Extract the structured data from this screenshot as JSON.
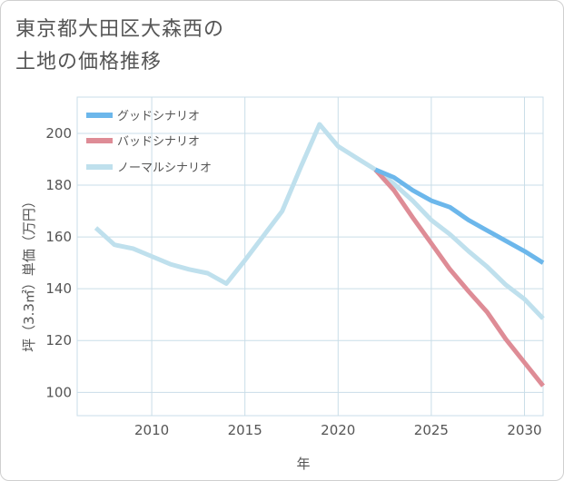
{
  "title_line1": "東京都大田区大森西の",
  "title_line2": "土地の価格推移",
  "chart_data": {
    "type": "line",
    "title": "東京都大田区大森西の土地の価格推移",
    "xlabel": "年",
    "ylabel": "坪（3.3㎡）単価（万円）",
    "xlim": [
      2006,
      2031
    ],
    "ylim": [
      91,
      214
    ],
    "xticks": [
      2010,
      2015,
      2020,
      2025,
      2030
    ],
    "yticks": [
      100,
      120,
      140,
      160,
      180,
      200
    ],
    "grid": true,
    "legend_position": "top-left",
    "series": [
      {
        "name": "グッドシナリオ",
        "color": "#6cb7eb",
        "x": [
          2022,
          2023,
          2024,
          2025,
          2026,
          2027,
          2028,
          2029,
          2030,
          2031
        ],
        "y": [
          186,
          183,
          178,
          174,
          171.5,
          166.5,
          162.5,
          158.5,
          154.5,
          150
        ]
      },
      {
        "name": "バッドシナリオ",
        "color": "#de8c96",
        "x": [
          2022,
          2023,
          2024,
          2025,
          2026,
          2027,
          2028,
          2029,
          2030,
          2031
        ],
        "y": [
          186,
          178,
          167.5,
          157.5,
          147.5,
          139,
          131,
          120.5,
          111.5,
          102.5
        ]
      },
      {
        "name": "ノーマルシナリオ",
        "color": "#bfe0ed",
        "x": [
          2007,
          2008,
          2009,
          2010,
          2011,
          2012,
          2013,
          2014,
          2015,
          2016,
          2017,
          2018,
          2019,
          2020,
          2021,
          2022,
          2023,
          2024,
          2025,
          2026,
          2027,
          2028,
          2029,
          2030,
          2031
        ],
        "y": [
          163.5,
          157,
          155.5,
          152.5,
          149.5,
          147.5,
          146,
          142,
          151,
          160.5,
          170,
          187,
          203.5,
          195,
          190.5,
          186,
          180.5,
          174,
          166.5,
          161,
          154.5,
          148.5,
          141.5,
          136,
          128.5
        ]
      }
    ]
  }
}
